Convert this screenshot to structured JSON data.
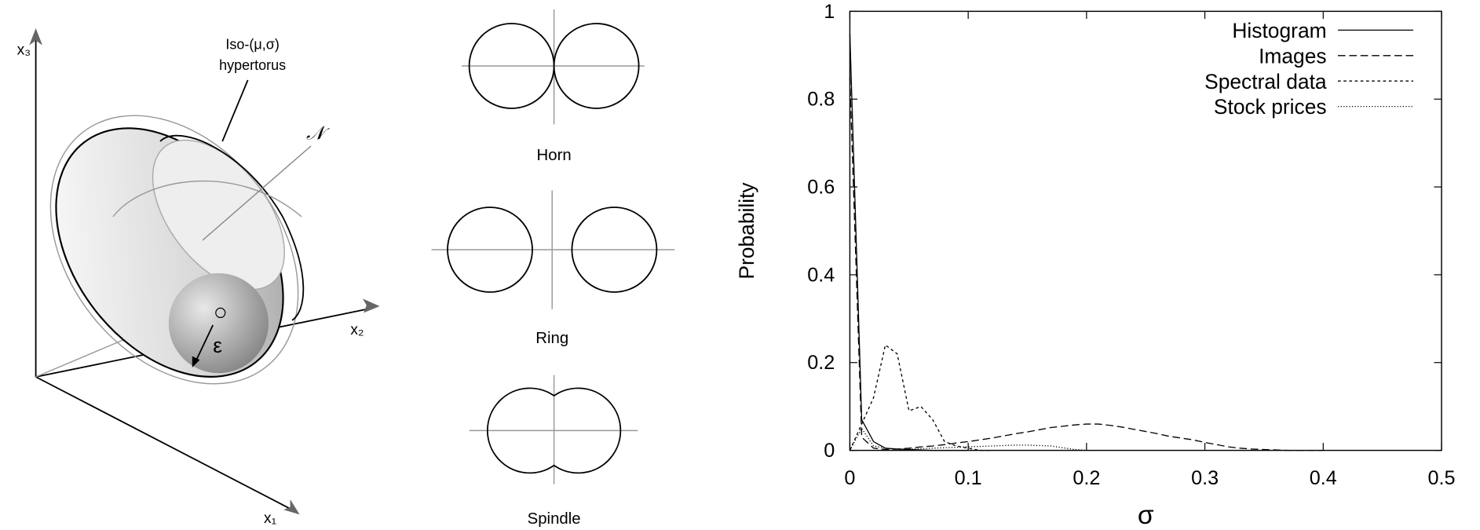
{
  "diagram": {
    "axis_labels": [
      "x₃",
      "x₂",
      "x₁"
    ],
    "torus_label": [
      "Iso-(μ,σ)",
      "hypertorus"
    ],
    "manifold_label": "𝒩",
    "radius_label": "ε",
    "sections": [
      "Horn",
      "Ring",
      "Spindle"
    ]
  },
  "chart_data": {
    "type": "line",
    "xlabel": "σ",
    "ylabel": "Probability",
    "x": [
      0,
      0.01,
      0.02,
      0.03,
      0.04,
      0.05,
      0.06,
      0.07,
      0.08,
      0.09,
      0.1,
      0.11,
      0.12,
      0.13,
      0.14,
      0.15,
      0.16,
      0.17,
      0.18,
      0.19,
      0.2,
      0.21,
      0.22,
      0.23,
      0.24,
      0.25,
      0.26,
      0.27,
      0.28,
      0.29,
      0.3,
      0.31,
      0.32,
      0.33,
      0.34,
      0.35,
      0.36,
      0.37,
      0.38,
      0.39,
      0.4
    ],
    "series": [
      {
        "name": "Histogram",
        "color": "#000000",
        "line_style": "solid",
        "values": [
          0.95,
          0.07,
          0.02,
          0.005,
          0.003,
          0.002,
          0.001,
          0,
          0,
          0,
          0,
          null,
          null,
          null,
          null,
          null,
          null,
          null,
          null,
          null,
          null,
          null,
          null,
          null,
          null,
          null,
          null,
          null,
          null,
          null,
          null,
          null,
          null,
          null,
          null,
          null,
          null,
          null,
          null,
          null,
          null
        ]
      },
      {
        "name": "Images",
        "color": "#000000",
        "line_style": "dashed",
        "values": [
          0.85,
          0.03,
          0.005,
          0.002,
          0.003,
          0.005,
          0.008,
          0.01,
          0.013,
          0.017,
          0.02,
          0.024,
          0.028,
          0.033,
          0.038,
          0.042,
          0.047,
          0.052,
          0.055,
          0.058,
          0.06,
          0.06,
          0.057,
          0.053,
          0.048,
          0.043,
          0.038,
          0.032,
          0.028,
          0.024,
          0.018,
          0.013,
          0.008,
          0.005,
          0.003,
          0.002,
          0.001,
          0,
          0,
          0,
          0
        ]
      },
      {
        "name": "Spectral data",
        "color": "#000000",
        "line_style": "short-dashed",
        "values": [
          0,
          0.06,
          0.12,
          0.24,
          0.22,
          0.09,
          0.1,
          0.07,
          0.02,
          0.01,
          0.005,
          0,
          0,
          null,
          null,
          null,
          null,
          null,
          null,
          null,
          null,
          null,
          null,
          null,
          null,
          null,
          null,
          null,
          null,
          null,
          null,
          null,
          null,
          null,
          null,
          null,
          null,
          null,
          null,
          null,
          null
        ]
      },
      {
        "name": "Stock prices",
        "color": "#000000",
        "line_style": "dotted",
        "values": [
          0,
          0.05,
          0.01,
          0.005,
          0.003,
          0.003,
          0.004,
          0.005,
          0.006,
          0.007,
          0.008,
          0.009,
          0.01,
          0.011,
          0.012,
          0.012,
          0.011,
          0.01,
          0.006,
          0.002,
          0,
          null,
          null,
          null,
          null,
          null,
          null,
          null,
          null,
          null,
          null,
          null,
          null,
          null,
          null,
          null,
          null,
          null,
          null,
          null,
          null
        ]
      }
    ],
    "xlim": [
      0,
      0.5
    ],
    "xticks": [
      0,
      0.1,
      0.2,
      0.3,
      0.4,
      0.5
    ],
    "ylim": [
      0,
      1
    ],
    "yticks": [
      0,
      0.2,
      0.4,
      0.6,
      0.8,
      1
    ],
    "legend": "top-right"
  }
}
